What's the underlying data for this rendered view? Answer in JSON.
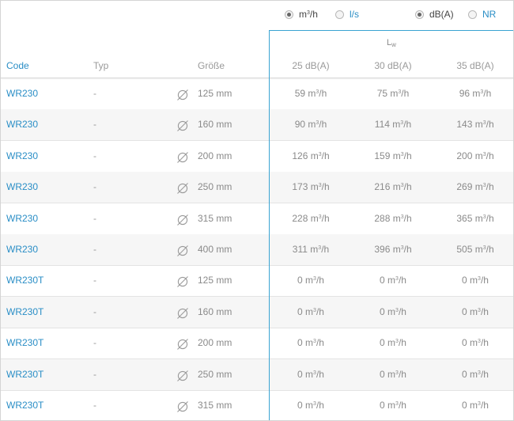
{
  "units": {
    "flow_options": [
      {
        "label": "m",
        "sup": "3",
        "tail": "/h",
        "checked": true
      },
      {
        "label": "l/s",
        "sup": "",
        "tail": "",
        "checked": false
      }
    ],
    "level_options": [
      {
        "label": "dB(A)",
        "checked": true
      },
      {
        "label": "NR",
        "checked": false
      }
    ]
  },
  "group_header": {
    "main": "L",
    "sub": "w"
  },
  "columns": {
    "code": "Code",
    "typ": "Typ",
    "size": "Größe",
    "levels": [
      "25 dB(A)",
      "30 dB(A)",
      "35 dB(A)"
    ]
  },
  "unit_label": {
    "main": "m",
    "sup": "3",
    "tail": "/h"
  },
  "diameter_icon": "diameter-symbol-icon",
  "rows": [
    {
      "code": "WR230",
      "typ": "-",
      "size": "125 mm",
      "values": [
        "59",
        "75",
        "96"
      ]
    },
    {
      "code": "WR230",
      "typ": "-",
      "size": "160 mm",
      "values": [
        "90",
        "114",
        "143"
      ]
    },
    {
      "code": "WR230",
      "typ": "-",
      "size": "200 mm",
      "values": [
        "126",
        "159",
        "200"
      ]
    },
    {
      "code": "WR230",
      "typ": "-",
      "size": "250 mm",
      "values": [
        "173",
        "216",
        "269"
      ]
    },
    {
      "code": "WR230",
      "typ": "-",
      "size": "315 mm",
      "values": [
        "228",
        "288",
        "365"
      ]
    },
    {
      "code": "WR230",
      "typ": "-",
      "size": "400 mm",
      "values": [
        "311",
        "396",
        "505"
      ]
    },
    {
      "code": "WR230T",
      "typ": "-",
      "size": "125 mm",
      "values": [
        "0",
        "0",
        "0"
      ]
    },
    {
      "code": "WR230T",
      "typ": "-",
      "size": "160 mm",
      "values": [
        "0",
        "0",
        "0"
      ]
    },
    {
      "code": "WR230T",
      "typ": "-",
      "size": "200 mm",
      "values": [
        "0",
        "0",
        "0"
      ]
    },
    {
      "code": "WR230T",
      "typ": "-",
      "size": "250 mm",
      "values": [
        "0",
        "0",
        "0"
      ]
    },
    {
      "code": "WR230T",
      "typ": "-",
      "size": "315 mm",
      "values": [
        "0",
        "0",
        "0"
      ]
    }
  ]
}
